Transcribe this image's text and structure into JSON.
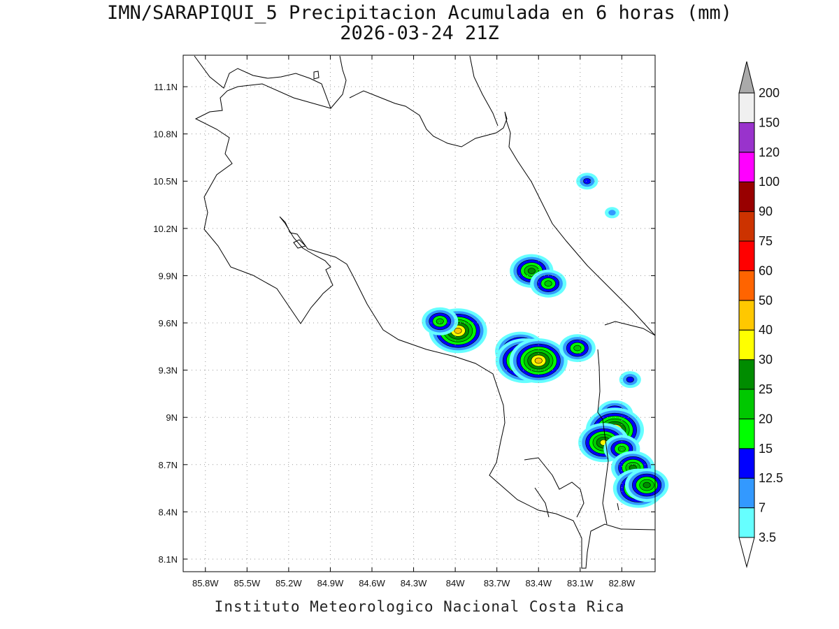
{
  "title": {
    "line1": "IMN/SARAPIQUI_5 Precipitacion Acumulada en 6 horas (mm)",
    "line2": "2026-03-24 21Z"
  },
  "footer": "Instituto Meteorologico Nacional Costa Rica",
  "map": {
    "lon_ticks": [
      "85.8W",
      "85.5W",
      "85.2W",
      "84.9W",
      "84.6W",
      "84.3W",
      "84W",
      "83.7W",
      "83.4W",
      "83.1W",
      "82.8W"
    ],
    "lat_ticks": [
      "11.1N",
      "10.8N",
      "10.5N",
      "10.2N",
      "9.9N",
      "9.6N",
      "9.3N",
      "9N",
      "8.7N",
      "8.4N",
      "8.1N"
    ],
    "grid": true,
    "extent": {
      "lon_min": -85.96,
      "lon_max": -82.56,
      "lat_min": 8.02,
      "lat_max": 11.3
    }
  },
  "colorbar": {
    "labels": [
      "3.5",
      "7",
      "12.5",
      "15",
      "20",
      "25",
      "30",
      "40",
      "50",
      "60",
      "75",
      "90",
      "100",
      "120",
      "150",
      "200"
    ],
    "colors": [
      "#ffffff",
      "#66ffff",
      "#3399ff",
      "#0000ff",
      "#00ff00",
      "#00c800",
      "#008c00",
      "#ffff00",
      "#ffc800",
      "#ff6400",
      "#ff0000",
      "#cc3300",
      "#990000",
      "#ff00ff",
      "#9933cc",
      "#f0f0f0",
      "#aaaaaa"
    ]
  },
  "precip_cells": [
    {
      "lon": -83.05,
      "lat": 10.5,
      "value": 12.5
    },
    {
      "lon": -82.87,
      "lat": 10.3,
      "value": 7
    },
    {
      "lon": -83.45,
      "lat": 9.93,
      "value": 25
    },
    {
      "lon": -83.33,
      "lat": 9.85,
      "value": 20
    },
    {
      "lon": -83.98,
      "lat": 9.55,
      "value": 40
    },
    {
      "lon": -84.11,
      "lat": 9.61,
      "value": 20
    },
    {
      "lon": -83.53,
      "lat": 9.42,
      "value": 30
    },
    {
      "lon": -83.5,
      "lat": 9.36,
      "value": 40
    },
    {
      "lon": -83.4,
      "lat": 9.36,
      "value": 40
    },
    {
      "lon": -83.12,
      "lat": 9.44,
      "value": 20
    },
    {
      "lon": -82.74,
      "lat": 9.24,
      "value": 12.5
    },
    {
      "lon": -82.85,
      "lat": 9.02,
      "value": 20
    },
    {
      "lon": -82.85,
      "lat": 8.92,
      "value": 40
    },
    {
      "lon": -82.93,
      "lat": 8.84,
      "value": 30
    },
    {
      "lon": -82.8,
      "lat": 8.8,
      "value": 20
    },
    {
      "lon": -82.72,
      "lat": 8.68,
      "value": 25
    },
    {
      "lon": -82.68,
      "lat": 8.55,
      "value": 30
    },
    {
      "lon": -82.62,
      "lat": 8.57,
      "value": 25
    }
  ]
}
